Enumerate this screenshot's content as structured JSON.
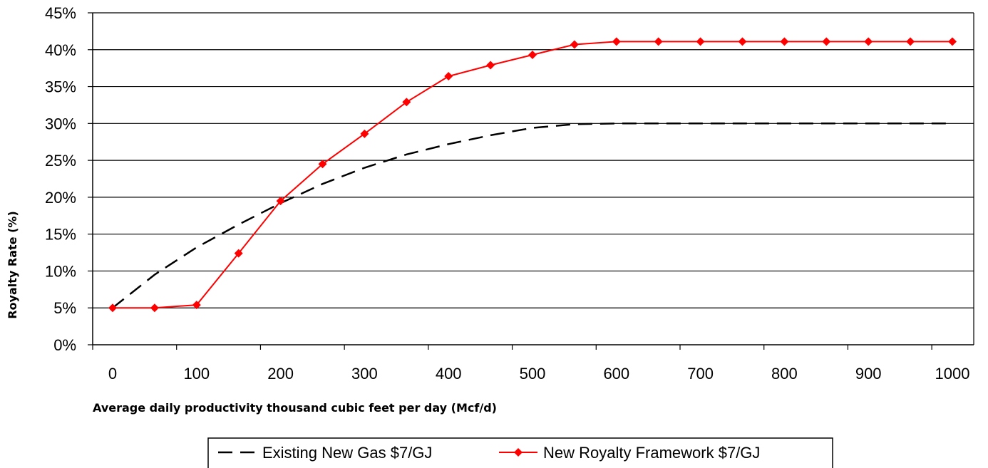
{
  "chart_data": {
    "type": "line",
    "xlabel": "Average daily productivity thousand cubic feet per day (Mcf/d)",
    "ylabel": "Royalty Rate (%)",
    "xlim": [
      0,
      1000
    ],
    "ylim": [
      0,
      45
    ],
    "x_ticks": [
      "0",
      "100",
      "200",
      "300",
      "400",
      "500",
      "600",
      "700",
      "800",
      "900",
      "1000"
    ],
    "y_ticks": [
      "0%",
      "5%",
      "10%",
      "15%",
      "20%",
      "25%",
      "30%",
      "35%",
      "40%",
      "45%"
    ],
    "grid": "horizontal",
    "legend_position": "bottom",
    "series": [
      {
        "name": "Existing New Gas $7/GJ",
        "color": "#000000",
        "style": "dashed",
        "x": [
          0,
          50,
          100,
          150,
          200,
          250,
          300,
          350,
          400,
          450,
          500,
          550,
          600,
          650,
          700,
          750,
          800,
          850,
          900,
          950,
          1000
        ],
        "y": [
          5,
          9.5,
          13.2,
          16.3,
          19.2,
          21.8,
          24.0,
          25.8,
          27.2,
          28.4,
          29.4,
          29.9,
          30,
          30,
          30,
          30,
          30,
          30,
          30,
          30,
          30
        ]
      },
      {
        "name": "New Royalty Framework $7/GJ",
        "color": "#ff0000",
        "style": "solid-diamond",
        "x": [
          0,
          50,
          100,
          150,
          200,
          250,
          300,
          350,
          400,
          450,
          500,
          550,
          600,
          650,
          700,
          750,
          800,
          850,
          900,
          950,
          1000
        ],
        "y": [
          5,
          5,
          5.4,
          12.4,
          19.5,
          24.5,
          28.6,
          32.9,
          36.4,
          37.9,
          39.3,
          40.7,
          41.1,
          41.1,
          41.1,
          41.1,
          41.1,
          41.1,
          41.1,
          41.1,
          41.1
        ]
      }
    ]
  }
}
